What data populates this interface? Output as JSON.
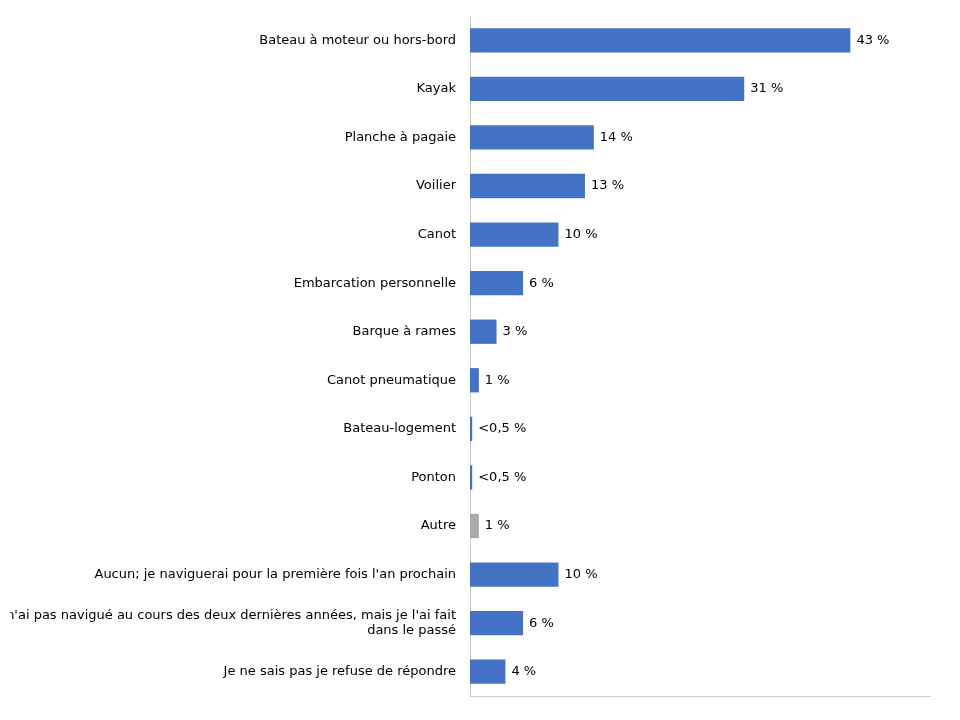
{
  "chart_data": {
    "type": "bar",
    "orientation": "horizontal",
    "categories": [
      "Bateau à moteur ou hors-bord",
      "Kayak",
      "Planche à pagaie",
      "Voilier",
      "Canot",
      "Embarcation personnelle",
      "Barque à rames",
      "Canot pneumatique",
      "Bateau-logement",
      "Ponton",
      "Autre",
      "Aucun; je naviguerai pour la première fois l'an prochain",
      "Je n'ai pas navigué au cours des deux dernières années, mais je l'ai fait\ndans le passé",
      "Je ne sais pas je refuse de répondre"
    ],
    "values": [
      43,
      31,
      14,
      13,
      10,
      6,
      3,
      1,
      0.25,
      0.25,
      1,
      10,
      6,
      4
    ],
    "value_labels": [
      "43 %",
      "31 %",
      "14 %",
      "13 %",
      "10 %",
      "6 %",
      "3 %",
      "1 %",
      "<0,5 %",
      "<0,5 %",
      "1 %",
      "10 %",
      "6 %",
      "4 %"
    ],
    "colors": [
      "#4472C4",
      "#4472C4",
      "#4472C4",
      "#4472C4",
      "#4472C4",
      "#4472C4",
      "#4472C4",
      "#4472C4",
      "#4472C4",
      "#4472C4",
      "#A9A9A9",
      "#4472C4",
      "#4472C4",
      "#4472C4"
    ],
    "xlim": [
      0,
      52
    ],
    "grid": false,
    "data_labels": true,
    "tick_labels": "y"
  }
}
